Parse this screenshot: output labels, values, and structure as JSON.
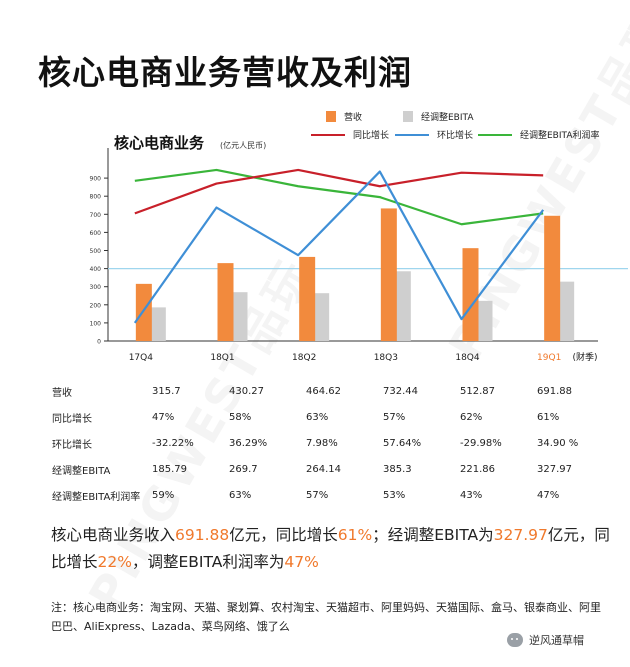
{
  "page": {
    "title": "核心电商业务营收及利润",
    "watermark": "PINGWEST品玩"
  },
  "chart_data": {
    "type": "bar",
    "title": "核心电商业务",
    "unit": "(亿元人民币)",
    "xlabel": "(财季)",
    "categories": [
      "17Q4",
      "18Q1",
      "18Q2",
      "18Q3",
      "18Q4",
      "19Q1"
    ],
    "highlight_category": "19Q1",
    "yticks": [
      0,
      100,
      200,
      300,
      400,
      500,
      600,
      700,
      800,
      900
    ],
    "ylim": [
      0,
      1000
    ],
    "reference_line_value": 400,
    "bar_series": [
      {
        "name": "营收",
        "color": "#f28a3d",
        "values": [
          315.7,
          430.27,
          464.62,
          732.44,
          512.87,
          691.88
        ]
      },
      {
        "name": "经调整EBITA",
        "color": "#cfcfcf",
        "values": [
          185.79,
          269.7,
          264.14,
          385.3,
          221.86,
          327.97
        ]
      }
    ],
    "line_series": [
      {
        "name": "同比增长",
        "color": "#c8202a",
        "unit_value_percent": [
          47,
          58,
          63,
          57,
          62,
          61
        ]
      },
      {
        "name": "环比增长",
        "color": "#3f8fd6",
        "unit_value_percent": [
          -32.22,
          36.29,
          7.98,
          57.64,
          -29.98,
          34.9
        ]
      },
      {
        "name": "经调整EBITA利润率",
        "color": "#3ab53a",
        "unit_value_percent": [
          59,
          63,
          57,
          53,
          43,
          47
        ]
      }
    ],
    "legend_position": "top-right"
  },
  "table": {
    "rows": [
      {
        "label": "营收",
        "values": [
          "315.7",
          "430.27",
          "464.62",
          "732.44",
          "512.87",
          "691.88"
        ]
      },
      {
        "label": "同比增长",
        "values": [
          "47%",
          "58%",
          "63%",
          "57%",
          "62%",
          "61%"
        ]
      },
      {
        "label": "环比增长",
        "values": [
          "-32.22%",
          "36.29%",
          "7.98%",
          "57.64%",
          "-29.98%",
          "34.90 %"
        ]
      },
      {
        "label": "经调整EBITA",
        "values": [
          "185.79",
          "269.7",
          "264.14",
          "385.3",
          "221.86",
          "327.97"
        ]
      },
      {
        "label": "经调整EBITA利润率",
        "values": [
          "59%",
          "63%",
          "57%",
          "53%",
          "43%",
          "47%"
        ]
      }
    ]
  },
  "summary": {
    "t1": "核心电商业务收入",
    "v1": "691.88",
    "t2": "亿元，同比增长",
    "v2": "61%",
    "t3": "；经调整EBITA为",
    "v3": "327.97",
    "t4": "亿元，同比增长",
    "v4": "22%",
    "t5": "，调整EBITA利润率为",
    "v5": "47%",
    "highlight_color": "#f0792c"
  },
  "note": "注：核心电商业务：淘宝网、天猫、聚划算、农村淘宝、天猫超市、阿里妈妈、天猫国际、盒马、银泰商业、阿里巴巴、AliExpress、Lazada、菜鸟网络、饿了么",
  "footer": {
    "account_name": "逆风通草帽",
    "icon": "wechat-icon"
  }
}
